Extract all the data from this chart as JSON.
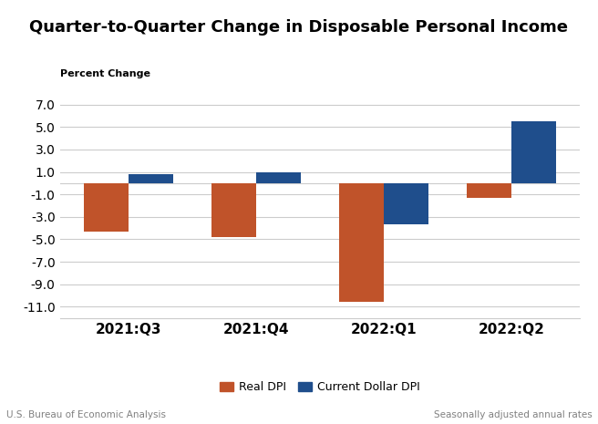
{
  "title": "Quarter-to-Quarter Change in Disposable Personal Income",
  "ylabel": "Percent Change",
  "categories": [
    "2021:Q3",
    "2021:Q4",
    "2022:Q1",
    "2022:Q2"
  ],
  "real_dpi": [
    -4.3,
    -4.8,
    -10.6,
    -1.3
  ],
  "current_dollar_dpi": [
    0.8,
    1.0,
    -3.7,
    5.5
  ],
  "real_dpi_color": "#C0532A",
  "current_dollar_dpi_color": "#1F4E8C",
  "bar_width": 0.35,
  "ylim": [
    -12.0,
    8.0
  ],
  "yticks": [
    7.0,
    5.0,
    3.0,
    1.0,
    -1.0,
    -3.0,
    -5.0,
    -7.0,
    -9.0,
    -11.0
  ],
  "legend_label_real": "Real DPI",
  "legend_label_current": "Current Dollar DPI",
  "footer_left": "U.S. Bureau of Economic Analysis",
  "footer_right": "Seasonally adjusted annual rates",
  "background_color": "#FFFFFF",
  "grid_color": "#CCCCCC",
  "title_fontsize": 13,
  "ylabel_fontsize": 8,
  "tick_fontsize": 10,
  "legend_fontsize": 9,
  "footer_fontsize": 7.5
}
